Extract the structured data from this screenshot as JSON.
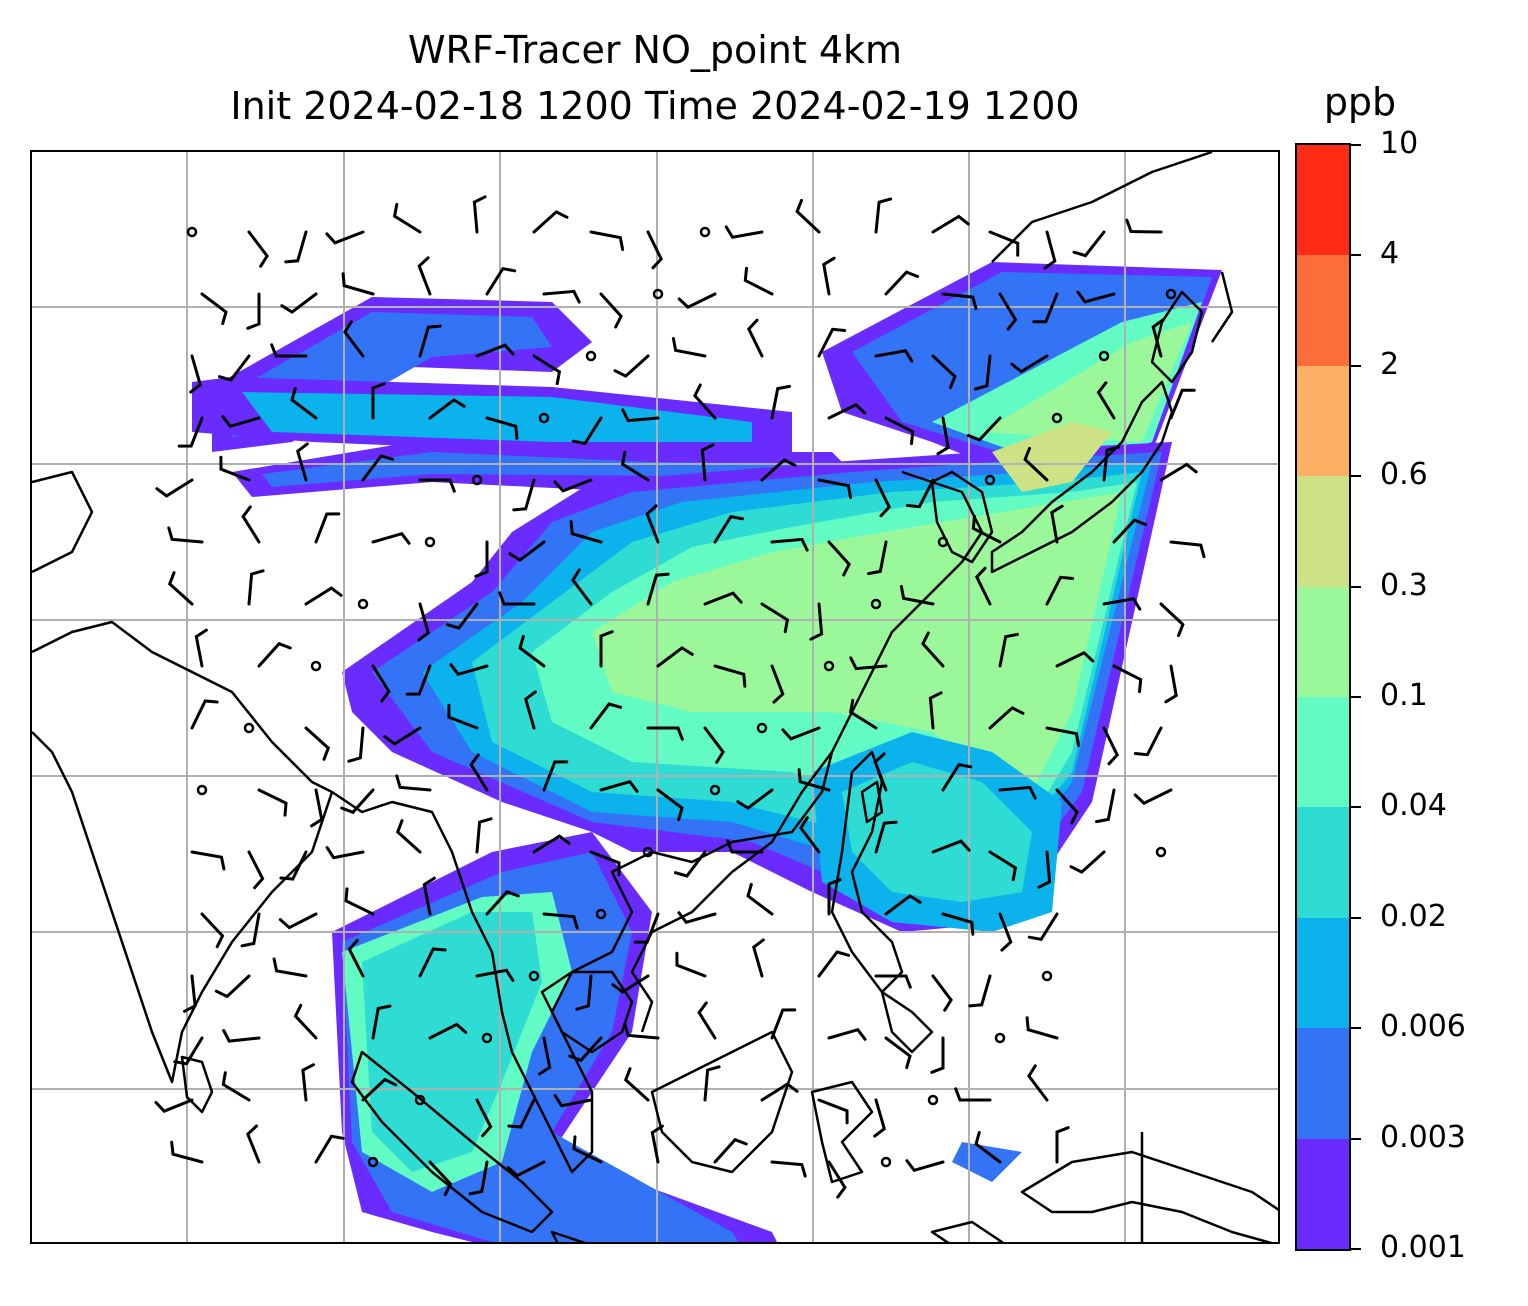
{
  "title_line1": "WRF-Tracer NO_point 4km",
  "title_line2": "Init 2024-02-18 1200 Time 2024-02-19 1200",
  "colorbar": {
    "unit": "ppb",
    "levels": [
      "0.001",
      "0.003",
      "0.006",
      "0.02",
      "0.04",
      "0.1",
      "0.3",
      "0.6",
      "2",
      "4",
      "10"
    ],
    "colors": [
      "#6a2bff",
      "#3274f5",
      "#0bb2ec",
      "#2fdcd4",
      "#62fbc3",
      "#9af89b",
      "#cde285",
      "#fdb064",
      "#fd6d3a",
      "#fe2b15"
    ]
  },
  "map": {
    "gridlines": true,
    "coastline_color": "#000000",
    "gridline_color": "#b0b0b0",
    "overlay": "wind barbs",
    "projection": "mercator"
  }
}
